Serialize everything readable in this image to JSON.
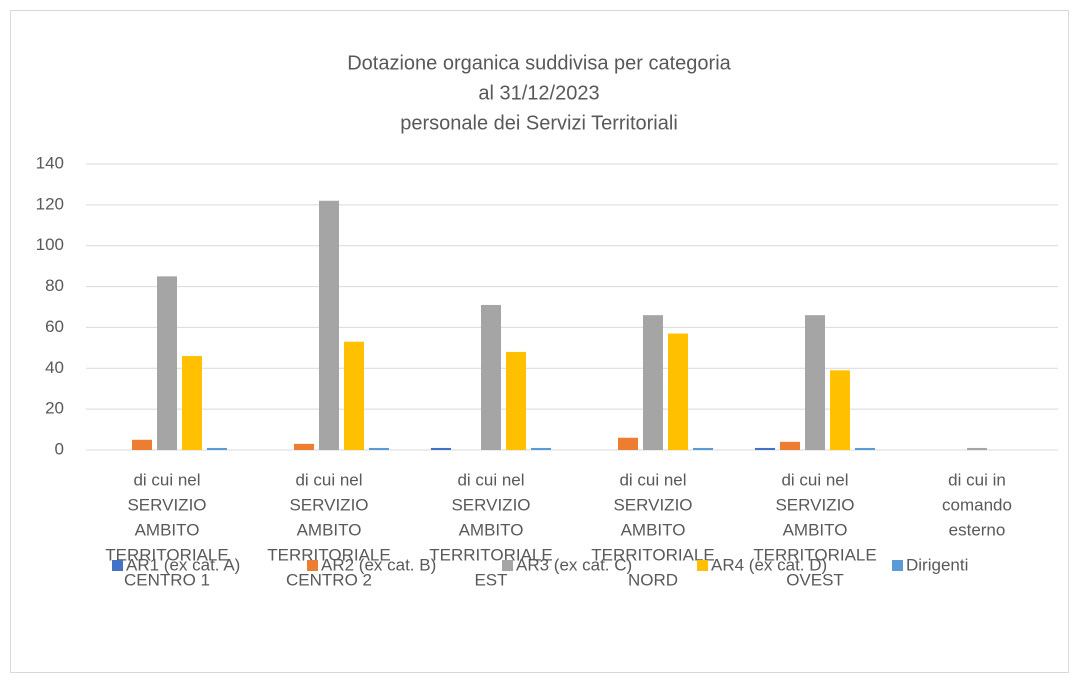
{
  "chart_data": {
    "type": "bar",
    "title": [
      "Dotazione organica suddivisa per categoria",
      "al 31/12/2023",
      "personale dei Servizi Territoriali"
    ],
    "categories": [
      [
        "di cui nel",
        "SERVIZIO",
        "AMBITO",
        "TERRITORIALE",
        "CENTRO 1"
      ],
      [
        "di cui nel",
        "SERVIZIO",
        "AMBITO",
        "TERRITORIALE",
        "CENTRO 2"
      ],
      [
        "di cui nel",
        "SERVIZIO",
        "AMBITO",
        "TERRITORIALE",
        "EST"
      ],
      [
        "di cui nel",
        "SERVIZIO",
        "AMBITO",
        "TERRITORIALE",
        "NORD"
      ],
      [
        "di cui nel",
        "SERVIZIO",
        "AMBITO",
        "TERRITORIALE",
        "OVEST"
      ],
      [
        "di cui in",
        "comando",
        "esterno"
      ]
    ],
    "series": [
      {
        "name": "AR1 (ex cat. A)",
        "color": "#4472c4",
        "values": [
          0,
          0,
          1,
          0,
          1,
          0
        ]
      },
      {
        "name": "AR2 (ex cat. B)",
        "color": "#ed7d31",
        "values": [
          5,
          3,
          0,
          6,
          4,
          0
        ]
      },
      {
        "name": "AR3 (ex cat. C)",
        "color": "#a5a5a5",
        "values": [
          85,
          122,
          71,
          66,
          66,
          1
        ]
      },
      {
        "name": "AR4 (ex cat. D)",
        "color": "#ffc000",
        "values": [
          46,
          53,
          48,
          57,
          39,
          0
        ]
      },
      {
        "name": "Dirigenti",
        "color": "#5b9bd5",
        "values": [
          1,
          1,
          1,
          1,
          1,
          0
        ]
      }
    ],
    "ylim": [
      0,
      140
    ],
    "yticks": [
      0,
      20,
      40,
      60,
      80,
      100,
      120,
      140
    ],
    "grid": true,
    "legend": "bottom"
  }
}
